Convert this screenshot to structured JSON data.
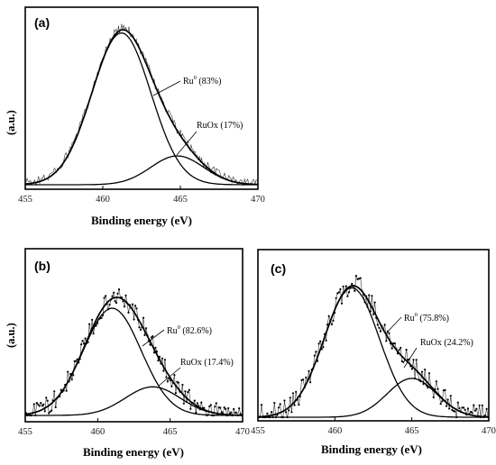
{
  "chart_data": [
    {
      "panel": "(a)",
      "type": "line",
      "xlabel": "Binding energy (eV)",
      "ylabel": "(a.u.)",
      "xlim": [
        455,
        470
      ],
      "xticks": [
        455,
        460,
        465,
        470
      ],
      "raw_style": "line",
      "series": [
        {
          "name": "Ru0",
          "label_main": "Ru",
          "label_sup": "0",
          "label_rest": " (83%)",
          "percent": 83,
          "center": 461.2,
          "sigma": 1.9,
          "amplitude": 1.0
        },
        {
          "name": "RuOx",
          "label_main": "RuOx (17%)",
          "label_sup": "",
          "label_rest": "",
          "percent": 17,
          "center": 464.8,
          "sigma": 1.7,
          "amplitude": 0.19
        }
      ]
    },
    {
      "panel": "(b)",
      "type": "line",
      "xlabel": "Binding energy (eV)",
      "ylabel": "(a.u.)",
      "xlim": [
        455,
        470
      ],
      "xticks": [
        455,
        460,
        465,
        470
      ],
      "raw_style": "points",
      "series": [
        {
          "name": "Ru0",
          "label_main": "Ru",
          "label_sup": "0",
          "label_rest": " (82.6%)",
          "percent": 82.6,
          "center": 461.0,
          "sigma": 2.0,
          "amplitude": 0.9
        },
        {
          "name": "RuOx",
          "label_main": "RuOx (17.4%)",
          "label_sup": "",
          "label_rest": "",
          "percent": 17.4,
          "center": 463.8,
          "sigma": 1.9,
          "amplitude": 0.24
        }
      ]
    },
    {
      "panel": "(c)",
      "type": "line",
      "xlabel": "Binding energy (eV)",
      "ylabel": "",
      "xlim": [
        455,
        470
      ],
      "xticks": [
        455,
        460,
        465,
        470
      ],
      "raw_style": "points",
      "series": [
        {
          "name": "Ru0",
          "label_main": "Ru",
          "label_sup": "0",
          "label_rest": " (75.8%)",
          "percent": 75.8,
          "center": 461.1,
          "sigma": 1.8,
          "amplitude": 1.0
        },
        {
          "name": "RuOx",
          "label_main": "RuOx (24.2%)",
          "label_sup": "",
          "label_rest": "",
          "percent": 24.2,
          "center": 465.0,
          "sigma": 1.6,
          "amplitude": 0.3
        }
      ]
    }
  ]
}
